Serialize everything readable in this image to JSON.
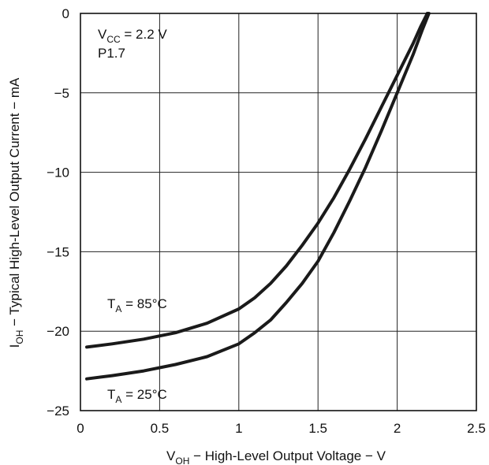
{
  "chart_data": {
    "type": "line",
    "xlabel": {
      "main": "V",
      "sub": "OH",
      "rest": " − High-Level Output Voltage − V"
    },
    "ylabel": {
      "main": "I",
      "sub": "OH",
      "rest": " − Typical High-Level Output Current − mA"
    },
    "xlim": [
      0,
      2.5
    ],
    "ylim": [
      -25,
      0
    ],
    "x_ticks": [
      0,
      0.5,
      1,
      1.5,
      2,
      2.5
    ],
    "x_tick_labels": [
      "0",
      "0.5",
      "1",
      "1.5",
      "2",
      "2.5"
    ],
    "y_ticks": [
      0,
      -5,
      -10,
      -15,
      -20,
      -25
    ],
    "y_tick_labels": [
      "0",
      "−5",
      "−10",
      "−15",
      "−20",
      "−25"
    ],
    "grid": true,
    "conditions": {
      "vcc": {
        "main": "V",
        "sub": "CC",
        "rest": " = 2.2 V"
      },
      "pin": "P1.7"
    },
    "series_labels": [
      {
        "main": "T",
        "sub": "A",
        "rest": " = 85°C"
      },
      {
        "main": "T",
        "sub": "A",
        "rest": " = 25°C"
      }
    ],
    "series": [
      {
        "color": "#1a1a1a",
        "points": [
          [
            0.04,
            -21.0
          ],
          [
            0.2,
            -20.8
          ],
          [
            0.4,
            -20.5
          ],
          [
            0.6,
            -20.1
          ],
          [
            0.8,
            -19.5
          ],
          [
            1.0,
            -18.6
          ],
          [
            1.1,
            -17.9
          ],
          [
            1.2,
            -17.0
          ],
          [
            1.3,
            -15.9
          ],
          [
            1.4,
            -14.6
          ],
          [
            1.5,
            -13.2
          ],
          [
            1.6,
            -11.6
          ],
          [
            1.7,
            -9.8
          ],
          [
            1.8,
            -7.9
          ],
          [
            1.9,
            -5.9
          ],
          [
            2.0,
            -3.9
          ],
          [
            2.1,
            -1.9
          ],
          [
            2.15,
            -0.8
          ],
          [
            2.19,
            0.0
          ]
        ]
      },
      {
        "color": "#1a1a1a",
        "points": [
          [
            0.04,
            -23.0
          ],
          [
            0.2,
            -22.8
          ],
          [
            0.4,
            -22.5
          ],
          [
            0.6,
            -22.1
          ],
          [
            0.8,
            -21.6
          ],
          [
            1.0,
            -20.8
          ],
          [
            1.1,
            -20.1
          ],
          [
            1.2,
            -19.3
          ],
          [
            1.3,
            -18.2
          ],
          [
            1.4,
            -17.0
          ],
          [
            1.5,
            -15.6
          ],
          [
            1.6,
            -13.8
          ],
          [
            1.7,
            -11.8
          ],
          [
            1.8,
            -9.7
          ],
          [
            1.9,
            -7.4
          ],
          [
            2.0,
            -5.0
          ],
          [
            2.1,
            -2.6
          ],
          [
            2.16,
            -1.0
          ],
          [
            2.2,
            0.0
          ]
        ]
      }
    ]
  }
}
